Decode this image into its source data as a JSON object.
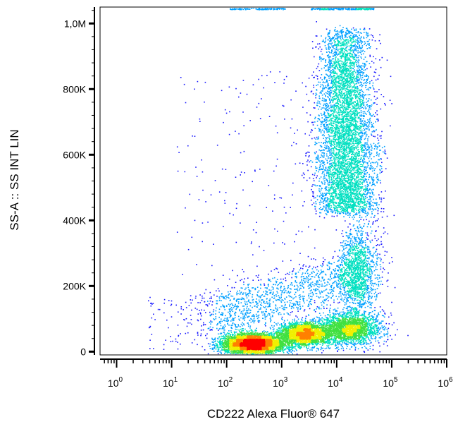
{
  "chart_data": {
    "type": "scatter",
    "plot_style": "flow cytometry density dot plot",
    "xlabel": "CD222 Alexa Fluor® 647",
    "ylabel": "SS-A :: SS INT LIN",
    "x_scale": "log",
    "y_scale": "linear",
    "xlim": [
      0.5,
      1000000
    ],
    "ylim": [
      -10000,
      1050000
    ],
    "x_ticks": [
      {
        "value": 1,
        "base": "10",
        "exp": "0"
      },
      {
        "value": 10,
        "base": "10",
        "exp": "1"
      },
      {
        "value": 100,
        "base": "10",
        "exp": "2"
      },
      {
        "value": 1000,
        "base": "10",
        "exp": "3"
      },
      {
        "value": 10000,
        "base": "10",
        "exp": "4"
      },
      {
        "value": 100000,
        "base": "10",
        "exp": "5"
      },
      {
        "value": 1000000,
        "base": "10",
        "exp": "6"
      }
    ],
    "y_ticks": [
      {
        "value": 0,
        "label": "0"
      },
      {
        "value": 200000,
        "label": "200K"
      },
      {
        "value": 400000,
        "label": "400K"
      },
      {
        "value": 600000,
        "label": "600K"
      },
      {
        "value": 800000,
        "label": "800K"
      },
      {
        "value": 1000000,
        "label": "1,0M"
      }
    ],
    "grid": false,
    "legend": "none",
    "colormap": [
      "#1a1aff",
      "#00a0ff",
      "#00e0c0",
      "#40e040",
      "#f0f000",
      "#ff8000",
      "#ff0000"
    ],
    "populations": [
      {
        "name": "",
        "x_center": 300,
        "y_center": 25000,
        "count": 4500
      },
      {
        "name": "",
        "x_center": 2500,
        "y_center": 55000,
        "count": 2500
      },
      {
        "name": "",
        "x_center": 12000,
        "y_center": 70000,
        "count": 2200
      },
      {
        "name": "",
        "x_center": 14000,
        "y_center": 650000,
        "count": 5200
      },
      {
        "name": "",
        "x_center": 22000,
        "y_center": 240000,
        "count": 1100
      }
    ]
  }
}
